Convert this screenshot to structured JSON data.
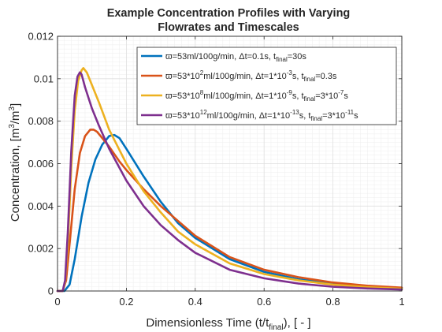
{
  "chart_data": {
    "type": "line",
    "title_line1": "Example Concentration Profiles with Varying",
    "title_line2": "Flowrates and Timescales",
    "xlabel": {
      "prefix": "Dimensionless Time (t/t",
      "sub": "final",
      "suffix": "), [ - ]"
    },
    "ylabel": {
      "prefix": "Concentration, [m",
      "sup1": "3",
      "mid": "/m",
      "sup2": "3",
      "suffix": "]"
    },
    "xlim": [
      0,
      1
    ],
    "ylim": [
      0,
      0.012
    ],
    "xticks": [
      0,
      0.2,
      0.4,
      0.6,
      0.8,
      1
    ],
    "xtick_labels": [
      "0",
      "0.2",
      "0.4",
      "0.6",
      "0.8",
      "1"
    ],
    "yticks": [
      0,
      0.002,
      0.004,
      0.006,
      0.008,
      0.01,
      0.012
    ],
    "ytick_labels": [
      "0",
      "0.002",
      "0.004",
      "0.006",
      "0.008",
      "0.01",
      "0.012"
    ],
    "grid": true,
    "minor_grid": true,
    "legend_position": "top-right",
    "series": [
      {
        "name": "ϖ=53ml/100g/min, Δt=0.1s, t_final=30s",
        "legend": [
          {
            "t": "ϖ=53ml/100g/min, Δt=0.1s, t"
          },
          {
            "t": "final",
            "sub": true
          },
          {
            "t": "=30s"
          }
        ],
        "color": "#0072BD",
        "x": [
          0,
          0.02,
          0.035,
          0.05,
          0.07,
          0.09,
          0.11,
          0.13,
          0.15,
          0.165,
          0.18,
          0.2,
          0.25,
          0.3,
          0.35,
          0.4,
          0.5,
          0.6,
          0.7,
          0.8,
          0.9,
          1.0
        ],
        "y": [
          0,
          0,
          0.0003,
          0.0015,
          0.0035,
          0.0051,
          0.0062,
          0.0069,
          0.0073,
          0.00735,
          0.0072,
          0.0067,
          0.0054,
          0.0042,
          0.0032,
          0.0025,
          0.0015,
          0.0009,
          0.00055,
          0.00035,
          0.00022,
          0.00014
        ]
      },
      {
        "name": "ϖ=53*10^2ml/100g/min, Δt=1*10^-3s, t_final=0.3s",
        "legend": [
          {
            "t": "ϖ=53*10"
          },
          {
            "t": "2",
            "sup": true
          },
          {
            "t": "ml/100g/min, Δt=1*10"
          },
          {
            "t": "-3",
            "sup": true
          },
          {
            "t": "s, t"
          },
          {
            "t": "final",
            "sub": true
          },
          {
            "t": "=0.3s"
          }
        ],
        "color": "#D95319",
        "x": [
          0,
          0.015,
          0.025,
          0.035,
          0.05,
          0.065,
          0.08,
          0.095,
          0.105,
          0.115,
          0.13,
          0.15,
          0.18,
          0.2,
          0.25,
          0.3,
          0.35,
          0.4,
          0.5,
          0.6,
          0.7,
          0.8,
          0.9,
          1.0
        ],
        "y": [
          0,
          0,
          0.0005,
          0.0022,
          0.0048,
          0.0065,
          0.0073,
          0.0076,
          0.0076,
          0.0075,
          0.0072,
          0.0068,
          0.0061,
          0.0057,
          0.0048,
          0.004,
          0.0033,
          0.0026,
          0.0016,
          0.001,
          0.00065,
          0.0004,
          0.00025,
          0.00016
        ]
      },
      {
        "name": "ϖ=53*10^8ml/100g/min, Δt=1*10^-9s, t_final=3*10^-7s",
        "legend": [
          {
            "t": "ϖ=53*10"
          },
          {
            "t": "8",
            "sup": true
          },
          {
            "t": "ml/100g/min, Δt=1*10"
          },
          {
            "t": "-9",
            "sup": true
          },
          {
            "t": "s, t"
          },
          {
            "t": "final",
            "sub": true
          },
          {
            "t": "=3*10"
          },
          {
            "t": "-7",
            "sup": true
          },
          {
            "t": "s"
          }
        ],
        "color": "#EDB120",
        "x": [
          0,
          0.015,
          0.022,
          0.03,
          0.04,
          0.05,
          0.06,
          0.07,
          0.075,
          0.085,
          0.1,
          0.12,
          0.15,
          0.2,
          0.25,
          0.3,
          0.35,
          0.4,
          0.5,
          0.6,
          0.7,
          0.8,
          0.9,
          1.0
        ],
        "y": [
          0,
          0,
          0.0004,
          0.0022,
          0.0058,
          0.0085,
          0.0099,
          0.0104,
          0.0105,
          0.0103,
          0.0097,
          0.0089,
          0.0076,
          0.006,
          0.0047,
          0.0037,
          0.0028,
          0.0022,
          0.0013,
          0.0008,
          0.0005,
          0.0003,
          0.00018,
          0.00011
        ]
      },
      {
        "name": "ϖ=53*10^12ml/100g/min, Δt=1*10^-13s, t_final=3*10^-11s",
        "legend": [
          {
            "t": "ϖ=53*10"
          },
          {
            "t": "12",
            "sup": true
          },
          {
            "t": "ml/100g/min, Δt=1*10"
          },
          {
            "t": "-13",
            "sup": true
          },
          {
            "t": "s, t"
          },
          {
            "t": "final",
            "sub": true
          },
          {
            "t": "=3*10"
          },
          {
            "t": "-11",
            "sup": true
          },
          {
            "t": "s"
          }
        ],
        "color": "#7E2F8E",
        "x": [
          0,
          0.015,
          0.022,
          0.03,
          0.04,
          0.05,
          0.058,
          0.065,
          0.07,
          0.08,
          0.1,
          0.12,
          0.15,
          0.2,
          0.25,
          0.3,
          0.35,
          0.4,
          0.5,
          0.6,
          0.7,
          0.8,
          0.9,
          1.0
        ],
        "y": [
          0,
          0,
          0.0005,
          0.0028,
          0.0066,
          0.0092,
          0.0101,
          0.0103,
          0.0102,
          0.0096,
          0.0086,
          0.0078,
          0.0067,
          0.0052,
          0.004,
          0.0031,
          0.0024,
          0.0018,
          0.001,
          0.0006,
          0.00035,
          0.0002,
          0.00012,
          7e-05
        ]
      }
    ]
  }
}
